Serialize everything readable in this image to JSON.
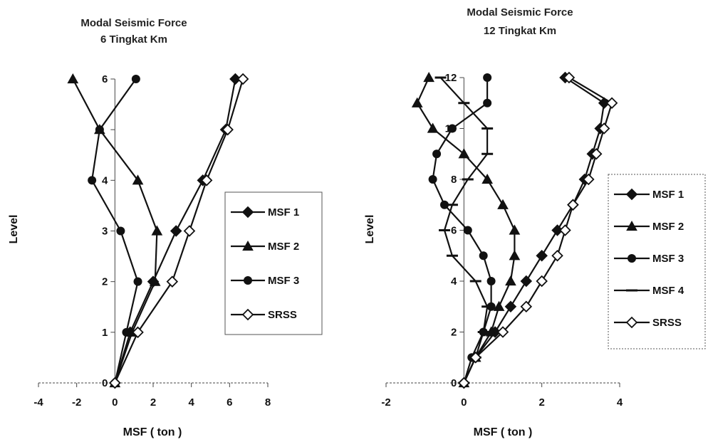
{
  "chart_data": [
    {
      "type": "line",
      "title": "Modal Seismic Force",
      "subtitle": "6 Tingkat Km",
      "xlabel": "MSF ( ton )",
      "ylabel": "Level",
      "xlim": [
        -4,
        8
      ],
      "ylim": [
        0,
        6
      ],
      "xticks": [
        -4,
        -2,
        0,
        2,
        4,
        6,
        8
      ],
      "yticks": [
        0,
        1,
        2,
        3,
        4,
        5,
        6
      ],
      "ytick_labels": [
        "0",
        "1",
        "2",
        "3",
        "4",
        "",
        "6"
      ],
      "grid": false,
      "legend_position": "right",
      "series": [
        {
          "name": "MSF 1",
          "marker": "diamond-filled",
          "x": [
            0,
            0.8,
            2.0,
            3.2,
            4.6,
            5.8,
            6.3
          ],
          "y": [
            0,
            1,
            2,
            3,
            4,
            5,
            6
          ]
        },
        {
          "name": "MSF 2",
          "marker": "triangle-filled",
          "x": [
            0,
            0.9,
            2.1,
            2.2,
            1.2,
            -0.8,
            -2.2
          ],
          "y": [
            0,
            1,
            2,
            3,
            4,
            5,
            6
          ]
        },
        {
          "name": "MSF 3",
          "marker": "circle-filled",
          "x": [
            0,
            0.6,
            1.2,
            0.3,
            -1.2,
            -0.8,
            1.1
          ],
          "y": [
            0,
            1,
            2,
            3,
            4,
            5,
            6
          ]
        },
        {
          "name": "SRSS",
          "marker": "diamond-open",
          "x": [
            0,
            1.2,
            3.0,
            3.9,
            4.8,
            5.9,
            6.7
          ],
          "y": [
            0,
            1,
            2,
            3,
            4,
            5,
            6
          ]
        }
      ]
    },
    {
      "type": "line",
      "title": "Modal Seismic Force",
      "subtitle": "12 Tingkat Km",
      "xlabel": "MSF ( ton )",
      "ylabel": "Level",
      "xlim": [
        -2,
        4
      ],
      "ylim": [
        0,
        12
      ],
      "xticks": [
        -2,
        0,
        2,
        4
      ],
      "yticks": [
        0,
        2,
        4,
        6,
        8,
        10,
        12
      ],
      "ytick_labels": [
        "0",
        "2",
        "4",
        "6",
        "8",
        "10",
        "12"
      ],
      "grid": false,
      "legend_position": "right",
      "series": [
        {
          "name": "MSF 1",
          "marker": "diamond-filled",
          "x": [
            0,
            0.3,
            0.8,
            1.2,
            1.6,
            2.0,
            2.4,
            2.8,
            3.1,
            3.3,
            3.5,
            3.6,
            2.6
          ],
          "y": [
            0,
            1,
            2,
            3,
            4,
            5,
            6,
            7,
            8,
            9,
            10,
            11,
            12
          ]
        },
        {
          "name": "MSF 2",
          "marker": "triangle-filled",
          "x": [
            0,
            0.3,
            0.7,
            0.9,
            1.2,
            1.3,
            1.3,
            1.0,
            0.6,
            0.0,
            -0.8,
            -1.2,
            -0.9
          ],
          "y": [
            0,
            1,
            2,
            3,
            4,
            5,
            6,
            7,
            8,
            9,
            10,
            11,
            12
          ]
        },
        {
          "name": "MSF 3",
          "marker": "circle-filled",
          "x": [
            0,
            0.2,
            0.5,
            0.7,
            0.7,
            0.5,
            0.1,
            -0.5,
            -0.8,
            -0.7,
            -0.3,
            0.6,
            0.6
          ],
          "y": [
            0,
            1,
            2,
            3,
            4,
            5,
            6,
            7,
            8,
            9,
            10,
            11,
            12
          ]
        },
        {
          "name": "MSF 4",
          "marker": "dash",
          "x": [
            0,
            0.3,
            0.5,
            0.6,
            0.3,
            -0.3,
            -0.5,
            -0.3,
            0.1,
            0.6,
            0.6,
            0.0,
            -0.6
          ],
          "y": [
            0,
            1,
            2,
            3,
            4,
            5,
            6,
            7,
            8,
            9,
            10,
            11,
            12
          ]
        },
        {
          "name": "SRSS",
          "marker": "diamond-open",
          "x": [
            0,
            0.3,
            1.0,
            1.6,
            2.0,
            2.4,
            2.6,
            2.8,
            3.2,
            3.4,
            3.6,
            3.8,
            2.7
          ],
          "y": [
            0,
            1,
            2,
            3,
            4,
            5,
            6,
            7,
            8,
            9,
            10,
            11,
            12
          ]
        }
      ]
    }
  ]
}
